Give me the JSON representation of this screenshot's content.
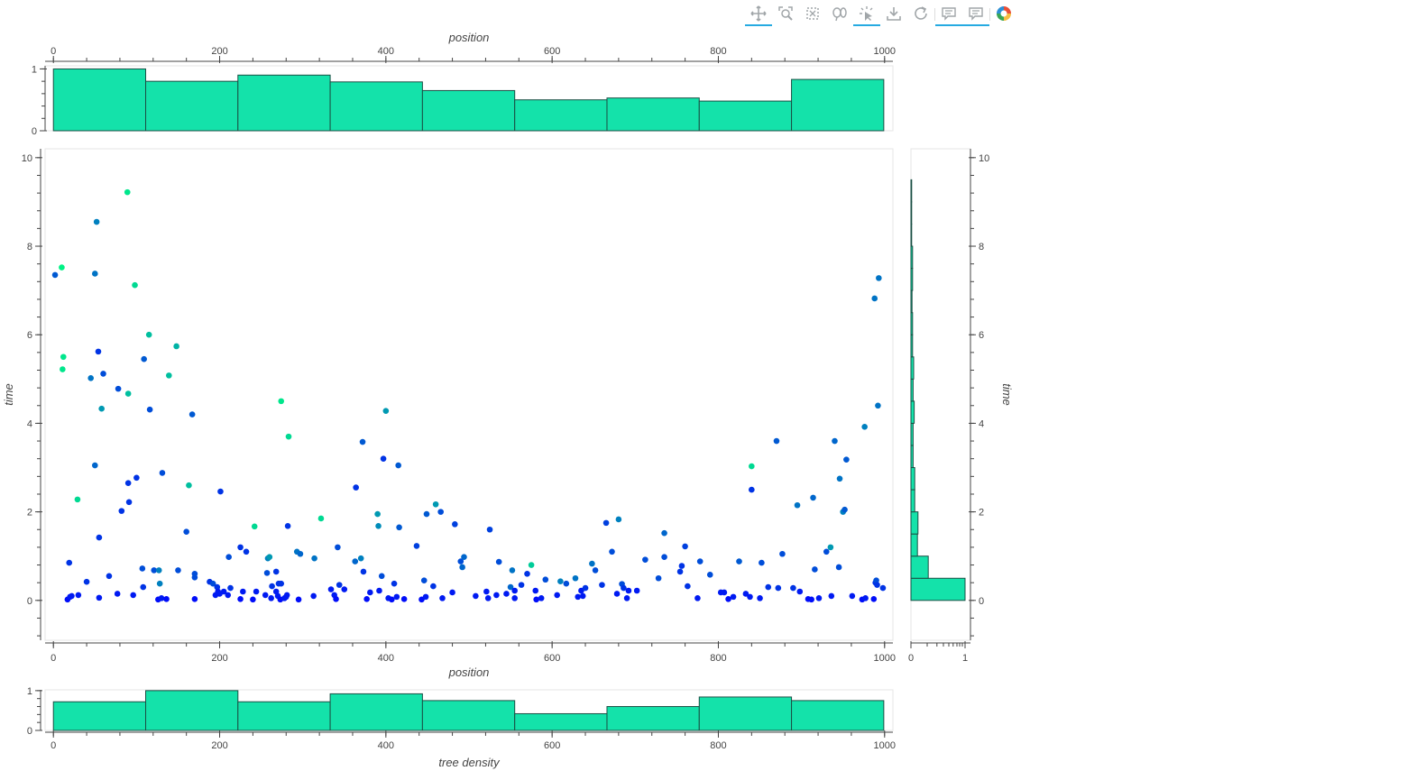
{
  "toolbar": {
    "items": [
      {
        "icon": "pan-icon",
        "active": true
      },
      {
        "icon": "box-zoom-icon",
        "active": false
      },
      {
        "icon": "box-select-icon",
        "active": false
      },
      {
        "icon": "lasso-select-icon",
        "active": false
      },
      {
        "icon": "tap-select-icon",
        "active": true
      },
      {
        "icon": "save-icon",
        "active": false
      },
      {
        "icon": "reset-icon",
        "active": false
      },
      {
        "icon": "hover-icon",
        "active": true
      },
      {
        "icon": "hover-icon",
        "active": true
      },
      {
        "icon": "bokeh-logo-icon",
        "active": false
      }
    ],
    "color": "#a1a6a9",
    "active_color": "#26aae1"
  },
  "chart_data": [
    {
      "id": "scatter",
      "type": "scatter",
      "xlabel": "position",
      "ylabel": "time",
      "xlim": [
        -10,
        1010
      ],
      "ylim": [
        -0.9,
        10.2
      ],
      "xticks": [
        0,
        200,
        400,
        600,
        800,
        1000
      ],
      "yticks": [
        0,
        2,
        4,
        6,
        8,
        10
      ],
      "color_low": "#0000ff",
      "color_high": "#00ff7f",
      "points": [
        [
          2,
          7.35,
          0.35
        ],
        [
          10,
          7.52,
          0.95
        ],
        [
          11,
          5.22,
          0.9
        ],
        [
          12,
          5.5,
          0.9
        ],
        [
          17,
          0.02,
          0.05
        ],
        [
          20,
          0.08,
          0.1
        ],
        [
          19,
          0.85,
          0.2
        ],
        [
          22,
          0.1,
          0.1
        ],
        [
          29,
          2.28,
          0.85
        ],
        [
          30,
          0.12,
          0.1
        ],
        [
          40,
          0.42,
          0.2
        ],
        [
          45,
          5.02,
          0.45
        ],
        [
          50,
          3.05,
          0.4
        ],
        [
          50,
          7.38,
          0.45
        ],
        [
          52,
          8.55,
          0.5
        ],
        [
          54,
          5.62,
          0.2
        ],
        [
          55,
          1.42,
          0.2
        ],
        [
          55,
          0.06,
          0.1
        ],
        [
          58,
          4.33,
          0.6
        ],
        [
          60,
          5.12,
          0.3
        ],
        [
          67,
          0.55,
          0.2
        ],
        [
          77,
          0.15,
          0.1
        ],
        [
          78,
          4.78,
          0.3
        ],
        [
          82,
          2.02,
          0.2
        ],
        [
          90,
          2.65,
          0.2
        ],
        [
          89,
          9.22,
          0.9
        ],
        [
          91,
          2.22,
          0.2
        ],
        [
          90,
          4.67,
          0.75
        ],
        [
          96,
          0.12,
          0.1
        ],
        [
          98,
          7.12,
          0.85
        ],
        [
          100,
          2.77,
          0.2
        ],
        [
          107,
          0.72,
          0.3
        ],
        [
          108,
          0.3,
          0.2
        ],
        [
          109,
          5.45,
          0.35
        ],
        [
          115,
          6.0,
          0.75
        ],
        [
          116,
          4.31,
          0.3
        ],
        [
          121,
          0.68,
          0.3
        ],
        [
          126,
          0.02,
          0.05
        ],
        [
          127,
          0.68,
          0.5
        ],
        [
          128,
          0.38,
          0.5
        ],
        [
          130,
          0.05,
          0.1
        ],
        [
          131,
          2.88,
          0.3
        ],
        [
          136,
          0.03,
          0.05
        ],
        [
          139,
          5.08,
          0.75
        ],
        [
          148,
          5.74,
          0.7
        ],
        [
          150,
          0.68,
          0.3
        ],
        [
          160,
          1.55,
          0.3
        ],
        [
          163,
          2.6,
          0.75
        ],
        [
          167,
          4.2,
          0.35
        ],
        [
          170,
          0.52,
          0.3
        ],
        [
          170,
          0.6,
          0.3
        ],
        [
          170,
          0.03,
          0.05
        ],
        [
          188,
          0.42,
          0.2
        ],
        [
          192,
          0.38,
          0.3
        ],
        [
          195,
          0.12,
          0.1
        ],
        [
          197,
          0.3,
          0.2
        ],
        [
          198,
          0.2,
          0.1
        ],
        [
          200,
          0.15,
          0.1
        ],
        [
          201,
          2.46,
          0.2
        ],
        [
          205,
          0.2,
          0.1
        ],
        [
          210,
          0.12,
          0.1
        ],
        [
          211,
          0.98,
          0.3
        ],
        [
          213,
          0.28,
          0.2
        ],
        [
          225,
          1.2,
          0.2
        ],
        [
          225,
          0.03,
          0.05
        ],
        [
          228,
          0.2,
          0.1
        ],
        [
          232,
          1.1,
          0.2
        ],
        [
          240,
          0.02,
          0.05
        ],
        [
          242,
          1.67,
          0.85
        ],
        [
          244,
          0.2,
          0.1
        ],
        [
          255,
          0.12,
          0.1
        ],
        [
          257,
          0.62,
          0.3
        ],
        [
          258,
          0.95,
          0.5
        ],
        [
          260,
          0.98,
          0.6
        ],
        [
          262,
          0.05,
          0.1
        ],
        [
          263,
          0.32,
          0.2
        ],
        [
          268,
          0.65,
          0.2
        ],
        [
          268,
          0.2,
          0.1
        ],
        [
          270,
          0.1,
          0.1
        ],
        [
          271,
          0.38,
          0.2
        ],
        [
          273,
          0.02,
          0.05
        ],
        [
          274,
          0.38,
          0.2
        ],
        [
          274,
          4.5,
          0.9
        ],
        [
          278,
          0.05,
          0.1
        ],
        [
          280,
          0.08,
          0.1
        ],
        [
          281,
          0.12,
          0.1
        ],
        [
          282,
          1.68,
          0.2
        ],
        [
          283,
          3.7,
          0.85
        ],
        [
          293,
          1.1,
          0.45
        ],
        [
          295,
          0.02,
          0.05
        ],
        [
          297,
          1.05,
          0.4
        ],
        [
          313,
          0.1,
          0.1
        ],
        [
          314,
          0.95,
          0.45
        ],
        [
          322,
          1.85,
          0.85
        ],
        [
          334,
          0.25,
          0.1
        ],
        [
          338,
          0.12,
          0.1
        ],
        [
          340,
          0.03,
          0.05
        ],
        [
          342,
          1.2,
          0.3
        ],
        [
          344,
          0.35,
          0.2
        ],
        [
          350,
          0.25,
          0.1
        ],
        [
          363,
          0.88,
          0.4
        ],
        [
          364,
          2.55,
          0.2
        ],
        [
          370,
          0.95,
          0.5
        ],
        [
          372,
          3.58,
          0.35
        ],
        [
          373,
          0.65,
          0.2
        ],
        [
          377,
          0.03,
          0.05
        ],
        [
          381,
          0.18,
          0.1
        ],
        [
          390,
          1.95,
          0.6
        ],
        [
          391,
          1.68,
          0.55
        ],
        [
          392,
          0.22,
          0.1
        ],
        [
          395,
          0.55,
          0.3
        ],
        [
          397,
          3.2,
          0.2
        ],
        [
          400,
          4.28,
          0.6
        ],
        [
          403,
          0.05,
          0.1
        ],
        [
          407,
          0.02,
          0.05
        ],
        [
          410,
          0.38,
          0.2
        ],
        [
          413,
          0.08,
          0.1
        ],
        [
          415,
          3.05,
          0.35
        ],
        [
          416,
          1.65,
          0.35
        ],
        [
          422,
          0.03,
          0.05
        ],
        [
          437,
          1.23,
          0.25
        ],
        [
          443,
          0.02,
          0.05
        ],
        [
          446,
          0.45,
          0.3
        ],
        [
          448,
          0.08,
          0.1
        ],
        [
          449,
          1.95,
          0.35
        ],
        [
          457,
          0.32,
          0.2
        ],
        [
          460,
          2.17,
          0.6
        ],
        [
          466,
          2.0,
          0.3
        ],
        [
          468,
          0.05,
          0.1
        ],
        [
          480,
          0.18,
          0.1
        ],
        [
          483,
          1.72,
          0.25
        ],
        [
          490,
          0.88,
          0.3
        ],
        [
          492,
          0.75,
          0.4
        ],
        [
          494,
          0.98,
          0.4
        ],
        [
          508,
          0.1,
          0.1
        ],
        [
          521,
          0.2,
          0.1
        ],
        [
          523,
          0.05,
          0.1
        ],
        [
          525,
          1.6,
          0.25
        ],
        [
          533,
          0.12,
          0.1
        ],
        [
          536,
          0.87,
          0.3
        ],
        [
          545,
          0.15,
          0.1
        ],
        [
          550,
          0.3,
          0.4
        ],
        [
          552,
          0.68,
          0.45
        ],
        [
          555,
          0.05,
          0.1
        ],
        [
          555,
          0.22,
          0.1
        ],
        [
          563,
          0.35,
          0.2
        ],
        [
          570,
          0.6,
          0.2
        ],
        [
          575,
          0.8,
          0.8
        ],
        [
          580,
          0.22,
          0.1
        ],
        [
          581,
          0.02,
          0.05
        ],
        [
          587,
          0.05,
          0.1
        ],
        [
          592,
          0.47,
          0.3
        ],
        [
          606,
          0.12,
          0.1
        ],
        [
          610,
          0.43,
          0.5
        ],
        [
          617,
          0.38,
          0.3
        ],
        [
          628,
          0.5,
          0.45
        ],
        [
          631,
          0.08,
          0.1
        ],
        [
          635,
          0.22,
          0.1
        ],
        [
          637,
          0.1,
          0.1
        ],
        [
          640,
          0.28,
          0.2
        ],
        [
          648,
          0.83,
          0.45
        ],
        [
          652,
          0.68,
          0.3
        ],
        [
          660,
          0.35,
          0.2
        ],
        [
          665,
          1.75,
          0.25
        ],
        [
          672,
          1.1,
          0.3
        ],
        [
          678,
          0.15,
          0.1
        ],
        [
          680,
          1.83,
          0.5
        ],
        [
          684,
          0.37,
          0.3
        ],
        [
          686,
          0.28,
          0.2
        ],
        [
          690,
          0.05,
          0.1
        ],
        [
          692,
          0.22,
          0.1
        ],
        [
          702,
          0.22,
          0.1
        ],
        [
          712,
          0.92,
          0.3
        ],
        [
          728,
          0.5,
          0.3
        ],
        [
          735,
          1.52,
          0.4
        ],
        [
          735,
          0.98,
          0.3
        ],
        [
          754,
          0.65,
          0.2
        ],
        [
          756,
          0.78,
          0.2
        ],
        [
          760,
          1.22,
          0.25
        ],
        [
          763,
          0.32,
          0.2
        ],
        [
          775,
          0.05,
          0.1
        ],
        [
          778,
          0.88,
          0.3
        ],
        [
          790,
          0.58,
          0.3
        ],
        [
          803,
          0.18,
          0.1
        ],
        [
          807,
          0.18,
          0.1
        ],
        [
          812,
          0.03,
          0.05
        ],
        [
          818,
          0.08,
          0.1
        ],
        [
          825,
          0.88,
          0.35
        ],
        [
          833,
          0.15,
          0.1
        ],
        [
          838,
          0.08,
          0.1
        ],
        [
          840,
          3.03,
          0.85
        ],
        [
          840,
          2.5,
          0.2
        ],
        [
          850,
          0.05,
          0.1
        ],
        [
          852,
          0.85,
          0.3
        ],
        [
          860,
          0.3,
          0.2
        ],
        [
          870,
          3.6,
          0.35
        ],
        [
          872,
          0.28,
          0.2
        ],
        [
          877,
          1.05,
          0.3
        ],
        [
          890,
          0.28,
          0.2
        ],
        [
          895,
          2.15,
          0.45
        ],
        [
          898,
          0.2,
          0.1
        ],
        [
          908,
          0.03,
          0.05
        ],
        [
          912,
          0.02,
          0.05
        ],
        [
          914,
          2.32,
          0.4
        ],
        [
          916,
          0.7,
          0.3
        ],
        [
          921,
          0.05,
          0.1
        ],
        [
          930,
          1.1,
          0.3
        ],
        [
          935,
          1.2,
          0.6
        ],
        [
          936,
          0.1,
          0.1
        ],
        [
          940,
          3.6,
          0.4
        ],
        [
          945,
          0.75,
          0.3
        ],
        [
          946,
          2.75,
          0.45
        ],
        [
          950,
          2.0,
          0.5
        ],
        [
          952,
          2.05,
          0.35
        ],
        [
          954,
          3.18,
          0.35
        ],
        [
          961,
          0.1,
          0.1
        ],
        [
          973,
          0.02,
          0.05
        ],
        [
          976,
          3.92,
          0.5
        ],
        [
          977,
          0.05,
          0.1
        ],
        [
          987,
          0.03,
          0.05
        ],
        [
          988,
          6.82,
          0.45
        ],
        [
          989,
          0.4,
          0.2
        ],
        [
          990,
          0.45,
          0.3
        ],
        [
          991,
          0.35,
          0.2
        ],
        [
          992,
          4.4,
          0.45
        ],
        [
          993,
          7.28,
          0.45
        ],
        [
          998,
          0.28,
          0.2
        ]
      ]
    },
    {
      "id": "top-hist",
      "type": "bar",
      "xlabel": "position",
      "xlim": [
        -10,
        1010
      ],
      "ylim": [
        0,
        1.05
      ],
      "xticks": [
        0,
        200,
        400,
        600,
        800,
        1000
      ],
      "yticks": [
        0,
        1
      ],
      "bins": [
        [
          0,
          111,
          1.0
        ],
        [
          111,
          222,
          0.8
        ],
        [
          222,
          333,
          0.9
        ],
        [
          333,
          444,
          0.79
        ],
        [
          444,
          555,
          0.65
        ],
        [
          555,
          666,
          0.5
        ],
        [
          666,
          777,
          0.53
        ],
        [
          777,
          888,
          0.48
        ],
        [
          888,
          999,
          0.83
        ]
      ]
    },
    {
      "id": "bottom-hist",
      "type": "bar",
      "xlabel": "tree density",
      "xlim": [
        -10,
        1010
      ],
      "ylim": [
        0,
        1.02
      ],
      "xticks": [
        0,
        200,
        400,
        600,
        800,
        1000
      ],
      "yticks": [
        0,
        1
      ],
      "bins": [
        [
          0,
          111,
          0.72
        ],
        [
          111,
          222,
          1.0
        ],
        [
          222,
          333,
          0.72
        ],
        [
          333,
          444,
          0.92
        ],
        [
          444,
          555,
          0.75
        ],
        [
          555,
          666,
          0.42
        ],
        [
          666,
          777,
          0.6
        ],
        [
          777,
          888,
          0.84
        ],
        [
          888,
          999,
          0.75
        ]
      ]
    },
    {
      "id": "right-hist",
      "type": "bar",
      "orientation": "horizontal",
      "ylabel": "time",
      "xlim": [
        0,
        1.1
      ],
      "ylim": [
        -0.9,
        10.2
      ],
      "xticks": [
        0,
        1
      ],
      "yticks": [
        0,
        2,
        4,
        6,
        8,
        10
      ],
      "bins": [
        [
          0,
          0.5,
          1.0
        ],
        [
          0.5,
          1.0,
          0.32
        ],
        [
          1.0,
          1.5,
          0.12
        ],
        [
          1.5,
          2.0,
          0.13
        ],
        [
          2.0,
          2.5,
          0.07
        ],
        [
          2.5,
          3.0,
          0.07
        ],
        [
          3.0,
          3.5,
          0.04
        ],
        [
          3.5,
          4.0,
          0.04
        ],
        [
          4.0,
          4.5,
          0.06
        ],
        [
          4.5,
          5.0,
          0.04
        ],
        [
          5.0,
          5.5,
          0.05
        ],
        [
          5.5,
          6.0,
          0.03
        ],
        [
          6.0,
          6.5,
          0.03
        ],
        [
          6.5,
          7.0,
          0.02
        ],
        [
          7.0,
          7.5,
          0.03
        ],
        [
          7.5,
          8.0,
          0.03
        ],
        [
          8.0,
          8.5,
          0.01
        ],
        [
          8.5,
          9.0,
          0.01
        ],
        [
          9.0,
          9.5,
          0.01
        ]
      ]
    }
  ]
}
